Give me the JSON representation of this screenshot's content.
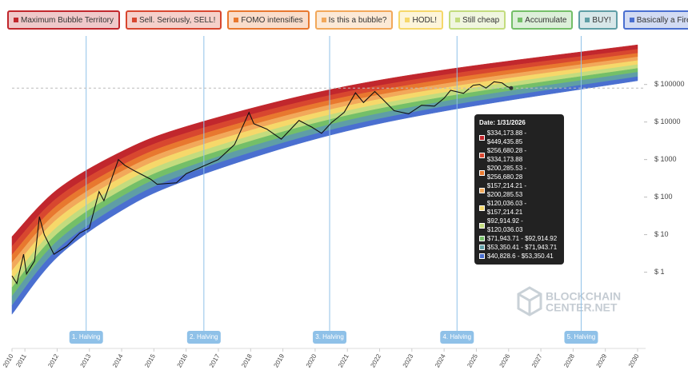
{
  "chart_data": {
    "type": "rainbow",
    "y_scale": "log",
    "xlim": [
      2010.6,
      2030
    ],
    "ylim": [
      0.0125,
      1200000
    ],
    "xticks": [
      {
        "value": 2010.6,
        "label": "2010"
      },
      2011,
      2012,
      2013,
      2014,
      2015,
      2016,
      2017,
      2018,
      2019,
      2020,
      2021,
      2022,
      2023,
      2024,
      2025,
      2026,
      2027,
      2028,
      2029,
      2030
    ],
    "yticks": [
      {
        "value": 1,
        "label": "$ 1"
      },
      {
        "value": 10,
        "label": "$ 10"
      },
      {
        "value": 100,
        "label": "$ 100"
      },
      {
        "value": 1000,
        "label": "$ 1000"
      },
      {
        "value": 10000,
        "label": "$ 10000"
      },
      {
        "value": 100000,
        "label": "$ 100000"
      }
    ],
    "band_x": [
      2010.6,
      2012,
      2014,
      2016,
      2020,
      2024,
      2030
    ],
    "band_floor": [
      0.076,
      2.5,
      44,
      280,
      3500,
      19500,
      126000
    ],
    "series": [
      {
        "name": "Maximum Bubble Territory",
        "color": "#c1272d",
        "values": [
          8.9,
          158,
          1640,
          7600,
          60000,
          245000,
          1138000
        ]
      },
      {
        "name": "Sell. Seriously, SELL!",
        "color": "#d8472f",
        "values": [
          4.9,
          95,
          1050,
          5060,
          42000,
          179000,
          867000
        ]
      },
      {
        "name": "FOMO intensifies",
        "color": "#e8782f",
        "values": [
          2.9,
          60,
          700,
          3500,
          31000,
          136000,
          679000
        ]
      },
      {
        "name": "Is this a bubble?",
        "color": "#f2a85a",
        "values": [
          1.8,
          39,
          484,
          2500,
          23000,
          104000,
          542000
        ]
      },
      {
        "name": "HODL!",
        "color": "#f6d86a",
        "values": [
          1.1,
          26,
          334,
          1800,
          17200,
          81000,
          433000
        ]
      },
      {
        "name": "Still cheap",
        "color": "#c3dc7e",
        "values": [
          0.64,
          16,
          223,
          1240,
          12500,
          61000,
          338000
        ]
      },
      {
        "name": "Accumulate",
        "color": "#74bf68",
        "values": [
          0.39,
          10.5,
          152,
          875,
          9300,
          46500,
          268000
        ]
      },
      {
        "name": "BUY!",
        "color": "#5f9ea6",
        "values": [
          0.23,
          6.7,
          103,
          615,
          6800,
          35500,
          212000
        ]
      },
      {
        "name": "Basically a Fire Sale",
        "color": "#4a6fd0",
        "values": [
          0.13,
          4,
          66,
          410,
          4800,
          25800,
          161000
        ]
      }
    ],
    "price": {
      "color": "#111111",
      "x": [
        2010.6,
        2010.75,
        2010.96,
        2011.05,
        2011.3,
        2011.45,
        2011.6,
        2011.9,
        2012.3,
        2012.7,
        2013.0,
        2013.3,
        2013.45,
        2013.9,
        2014.1,
        2014.4,
        2014.9,
        2015.1,
        2015.7,
        2016.0,
        2016.5,
        2017.0,
        2017.5,
        2017.95,
        2018.1,
        2018.5,
        2018.95,
        2019.5,
        2019.9,
        2020.2,
        2020.5,
        2020.9,
        2021.25,
        2021.5,
        2021.85,
        2022.1,
        2022.45,
        2022.9,
        2023.3,
        2023.7,
        2024.0,
        2024.2,
        2024.6,
        2024.9,
        2025.1,
        2025.3,
        2025.55,
        2025.8,
        2025.95,
        2026.08
      ],
      "values": [
        0.8,
        0.5,
        3,
        0.9,
        2,
        30,
        10,
        3,
        5,
        11,
        15,
        140,
        80,
        1000,
        700,
        500,
        300,
        220,
        240,
        420,
        650,
        1000,
        2500,
        18000,
        9000,
        6500,
        3500,
        11000,
        7300,
        5000,
        9500,
        18000,
        60000,
        33000,
        65000,
        40000,
        20000,
        16500,
        28000,
        26500,
        43000,
        70000,
        58000,
        95000,
        100000,
        80000,
        118000,
        110000,
        88000,
        80000
      ]
    },
    "halvings": [
      {
        "label": "1. Halving",
        "x": 2012.9
      },
      {
        "label": "2. Halving",
        "x": 2016.55
      },
      {
        "label": "3. Halving",
        "x": 2020.45
      },
      {
        "label": "4. Halving",
        "x": 2024.4
      },
      {
        "label": "5. Halving",
        "x": 2028.25
      }
    ],
    "tooltip": {
      "date": "Date: 1/31/2026",
      "rows": [
        "$334,173.88 - $449,435.85",
        "$256,680.28 - $334,173.88",
        "$200,285.53 - $256,680.28",
        "$157,214.21 - $200,285.53",
        "$120,036.03 - $157,214.21",
        "$92,914.92 - $120,036.03",
        "$71,943.71 - $92,914.92",
        "$53,350.41 - $71,943.71",
        "$40,828.6 - $53,350.41"
      ]
    },
    "watermark": [
      "BLOCKCHAIN",
      "CENTER.NET"
    ]
  }
}
